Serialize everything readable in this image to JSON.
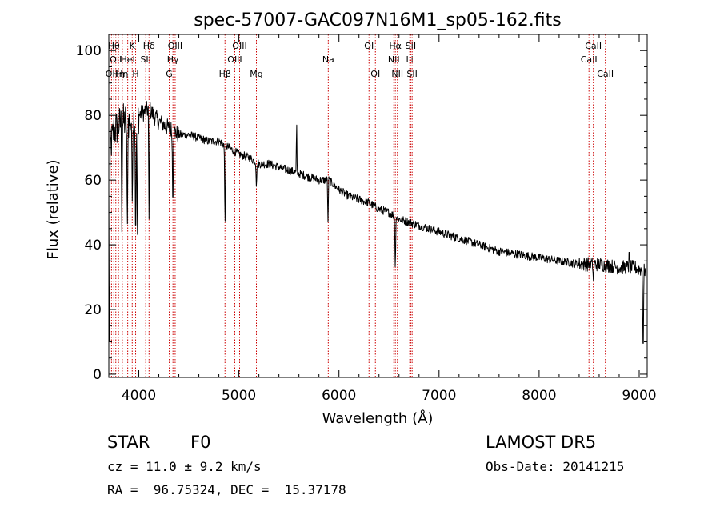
{
  "chart_data": {
    "type": "line",
    "title": "spec-57007-GAC097N16M1_sp05-162.fits",
    "xlabel": "Wavelength (Å)",
    "ylabel": "Flux (relative)",
    "xlim": [
      3700,
      9080
    ],
    "ylim": [
      -1,
      105
    ],
    "xticks": [
      4000,
      5000,
      6000,
      7000,
      8000,
      9000
    ],
    "yticks": [
      0,
      20,
      40,
      60,
      80,
      100
    ],
    "grid": false,
    "line_color": "#000000",
    "marker_color": "#cc0000",
    "continuum": {
      "x": [
        3700,
        3750,
        3800,
        3850,
        3900,
        3950,
        4000,
        4100,
        4200,
        4300,
        4400,
        4500,
        4600,
        4700,
        4800,
        4900,
        5000,
        5100,
        5200,
        5300,
        5400,
        5500,
        5600,
        5700,
        5800,
        5900,
        6000,
        6100,
        6200,
        6300,
        6400,
        6500,
        6600,
        6700,
        6800,
        6900,
        7000,
        7200,
        7400,
        7600,
        7800,
        8000,
        8200,
        8400,
        8600,
        8800,
        8950,
        9050
      ],
      "y": [
        68,
        75,
        77,
        78,
        78,
        79,
        80,
        82,
        78,
        76,
        74,
        74,
        73,
        72,
        72,
        70,
        68,
        67,
        65,
        65,
        64,
        63,
        62,
        61,
        60,
        60,
        57,
        55,
        54,
        53,
        51,
        50,
        48,
        47,
        46,
        45,
        44,
        42,
        40,
        38,
        37,
        36,
        35,
        34,
        34,
        33,
        33,
        32
      ]
    },
    "absorption_features": [
      {
        "x": 3705,
        "y": 2
      },
      {
        "x": 3830,
        "y": 44
      },
      {
        "x": 3885,
        "y": 42
      },
      {
        "x": 3935,
        "y": 50
      },
      {
        "x": 3968,
        "y": 35
      },
      {
        "x": 3985,
        "y": 38
      },
      {
        "x": 4102,
        "y": 48
      },
      {
        "x": 4340,
        "y": 48
      },
      {
        "x": 4861,
        "y": 44
      },
      {
        "x": 5175,
        "y": 57
      },
      {
        "x": 5890,
        "y": 47
      },
      {
        "x": 6563,
        "y": 31
      },
      {
        "x": 8542,
        "y": 29
      },
      {
        "x": 9040,
        "y": 2
      }
    ],
    "emission_features": [
      {
        "x": 5577,
        "y": 80
      },
      {
        "x": 8900,
        "y": 40
      }
    ],
    "line_markers": [
      {
        "x": 3727,
        "label": "OII",
        "row": 3
      },
      {
        "x": 3750,
        "label": "Hθ",
        "row": 1
      },
      {
        "x": 3770,
        "label": "OII",
        "row": 2
      },
      {
        "x": 3797,
        "label": "Hη",
        "row": 3
      },
      {
        "x": 3835,
        "label": "Hη",
        "row": 3
      },
      {
        "x": 3889,
        "label": "HeI",
        "row": 2
      },
      {
        "x": 3934,
        "label": "K",
        "row": 1
      },
      {
        "x": 3968,
        "label": "H",
        "row": 3
      },
      {
        "x": 4069,
        "label": "SII",
        "row": 2
      },
      {
        "x": 4102,
        "label": "Hδ",
        "row": 1
      },
      {
        "x": 4304,
        "label": "G",
        "row": 3
      },
      {
        "x": 4341,
        "label": "Hγ",
        "row": 2
      },
      {
        "x": 4363,
        "label": "OIII",
        "row": 1
      },
      {
        "x": 4861,
        "label": "Hβ",
        "row": 3
      },
      {
        "x": 4959,
        "label": "OIII",
        "row": 2
      },
      {
        "x": 5007,
        "label": "OIII",
        "row": 1
      },
      {
        "x": 5175,
        "label": "Mg",
        "row": 3
      },
      {
        "x": 5893,
        "label": "Na",
        "row": 2
      },
      {
        "x": 6300,
        "label": "OI",
        "row": 1
      },
      {
        "x": 6364,
        "label": "OI",
        "row": 3
      },
      {
        "x": 6548,
        "label": "NII",
        "row": 2
      },
      {
        "x": 6563,
        "label": "Hα",
        "row": 1
      },
      {
        "x": 6584,
        "label": "NII",
        "row": 3
      },
      {
        "x": 6707,
        "label": "Li",
        "row": 2
      },
      {
        "x": 6717,
        "label": "SII",
        "row": 1
      },
      {
        "x": 6731,
        "label": "SII",
        "row": 3
      },
      {
        "x": 8498,
        "label": "CaII",
        "row": 2
      },
      {
        "x": 8542,
        "label": "CaII",
        "row": 1
      },
      {
        "x": 8662,
        "label": "CaII",
        "row": 3
      }
    ]
  },
  "info": {
    "class": "STAR",
    "subclass": "F0",
    "survey": "LAMOST DR5",
    "cz": "cz = 11.0 ± 9.2 km/s",
    "obs_date": "Obs-Date: 20141215",
    "coords": "RA =  96.75324, DEC =  15.37178"
  }
}
